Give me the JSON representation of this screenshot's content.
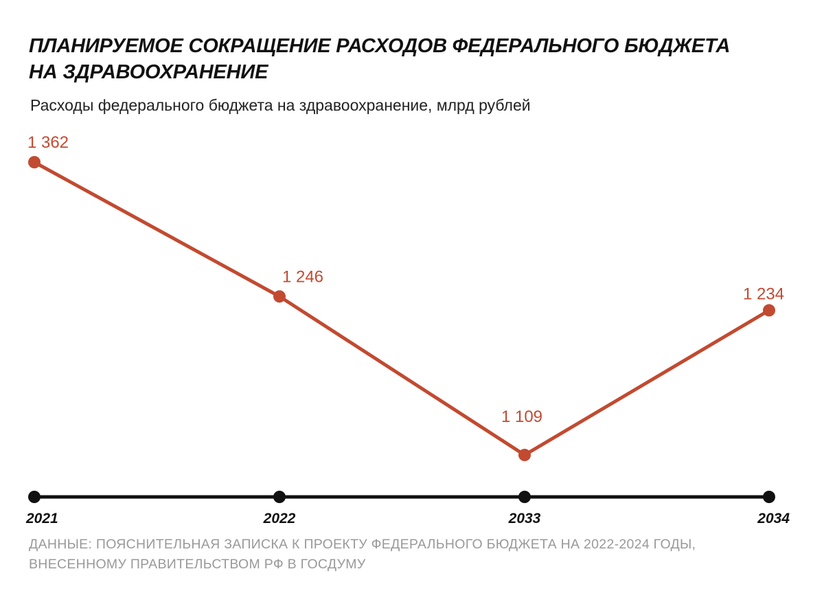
{
  "title_lines": [
    "ПЛАНИРУЕМОЕ СОКРАЩЕНИЕ РАСХОДОВ ФЕДЕРАЛЬНОГО БЮДЖЕТА",
    "НА ЗДРАВООХРАНЕНИЕ"
  ],
  "subtitle": "Расходы федерального бюджета на здравоохранение, млрд рублей",
  "source_lines": [
    "ДАННЫЕ: ПОЯСНИТЕЛЬНАЯ ЗАПИСКА К ПРОЕКТУ ФЕДЕРАЛЬНОГО БЮДЖЕТА НА 2022-2024 ГОДЫ,",
    "ВНЕСЕННОМУ ПРАВИТЕЛЬСТВОМ РФ В ГОСДУМУ"
  ],
  "colors": {
    "line": "#c24a30",
    "label": "#c24a30",
    "axis": "#111111",
    "source_text": "#999999"
  },
  "chart_data": {
    "type": "line",
    "title": "ПЛАНИРУЕМОЕ СОКРАЩЕНИЕ РАСХОДОВ ФЕДЕРАЛЬНОГО БЮДЖЕТА НА ЗДРАВООХРАНЕНИЕ",
    "subtitle": "Расходы федерального бюджета на здравоохранение, млрд рублей",
    "categories": [
      "2021",
      "2022",
      "2033",
      "2034"
    ],
    "values": [
      1362,
      1246,
      1109,
      1234
    ],
    "value_labels": [
      "1 362",
      "1 246",
      "1 109",
      "1 234"
    ],
    "xlabel": "",
    "ylabel": "",
    "ylim": [
      1070,
      1380
    ],
    "grid": false,
    "legend": "none"
  }
}
